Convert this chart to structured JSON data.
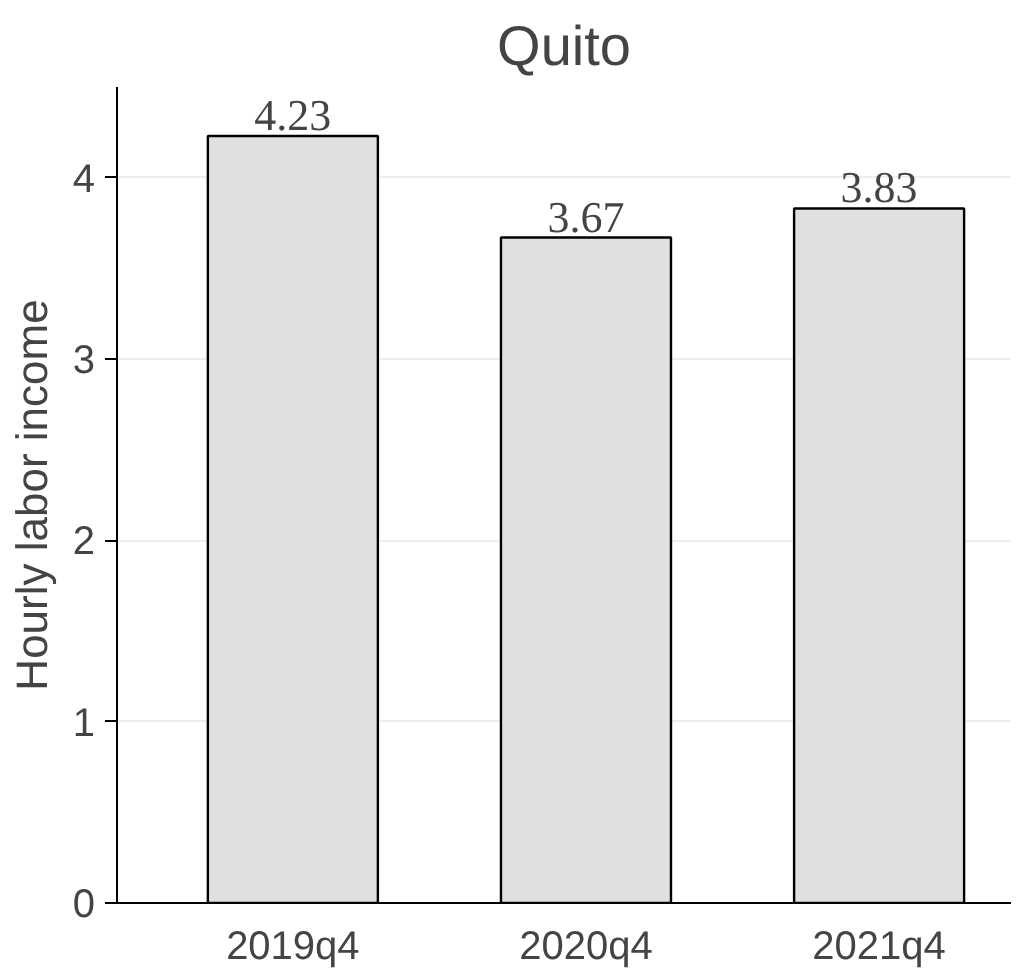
{
  "chart_data": {
    "type": "bar",
    "title": "Quito",
    "ylabel": "Hourly labor income",
    "categories": [
      "2019q4",
      "2020q4",
      "2021q4"
    ],
    "values": [
      4.23,
      3.67,
      3.83
    ],
    "color": "#e0e0e0",
    "ylim": [
      0,
      4.5
    ],
    "yticks": [
      0,
      1,
      2,
      3,
      4
    ],
    "grid": "y",
    "data_labels": true
  }
}
